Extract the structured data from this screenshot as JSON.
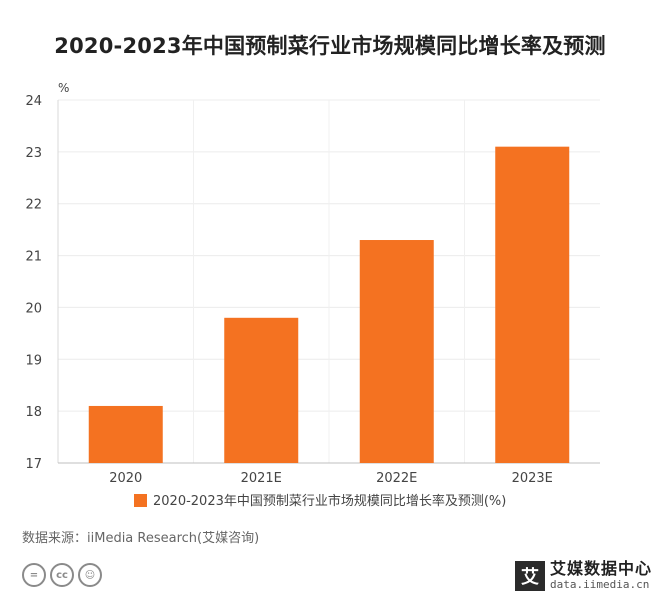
{
  "chart_data": {
    "type": "bar",
    "title": "2020-2023年中国预制菜行业市场规模同比增长率及预测",
    "ylabel": "%",
    "categories": [
      "2020",
      "2021E",
      "2022E",
      "2023E"
    ],
    "series": [
      {
        "name": "2020-2023年中国预制菜行业市场规模同比增长率及预测(%)",
        "values": [
          18.1,
          19.8,
          21.3,
          23.1
        ]
      }
    ],
    "ylim": [
      17,
      24
    ],
    "yticks": [
      17,
      18,
      19,
      20,
      21,
      22,
      23,
      24
    ],
    "grid": true,
    "legend_position": "bottom",
    "bar_color": "#F47221"
  },
  "footer": {
    "source": "数据来源：iiMedia Research(艾媒咨询)",
    "cc_icons": [
      "equal-icon",
      "cc-icon",
      "person-icon"
    ],
    "cc_glyphs": [
      "=",
      "cc",
      "☺"
    ],
    "brand_mark": "艾",
    "brand_name": "艾媒数据中心",
    "brand_url": "data.iimedia.cn"
  }
}
